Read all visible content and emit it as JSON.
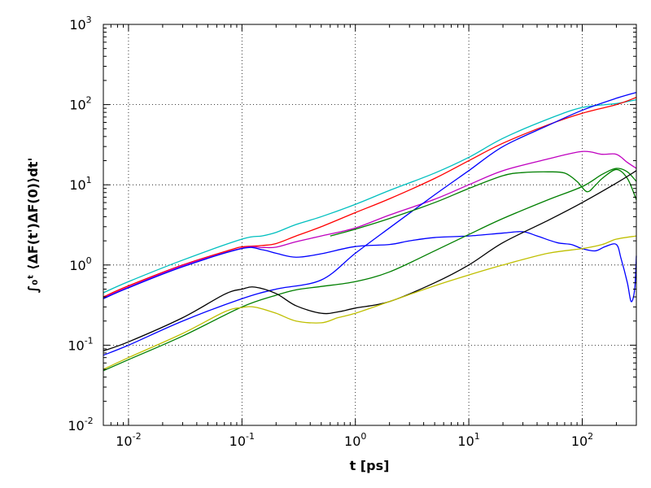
{
  "chart_data": {
    "type": "line",
    "title": "",
    "xlabel": "t [ps]",
    "ylabel": "∫₀ᵗ ⟨ΔF(t')ΔF(0)⟩dt'",
    "xscale": "log",
    "yscale": "log",
    "xlim": [
      0.006,
      300
    ],
    "ylim": [
      0.01,
      1000
    ],
    "grid": true,
    "x_ticks": [
      {
        "base": "10",
        "exp": "-2",
        "value": 0.01
      },
      {
        "base": "10",
        "exp": "-1",
        "value": 0.1
      },
      {
        "base": "10",
        "exp": "0",
        "value": 1
      },
      {
        "base": "10",
        "exp": "1",
        "value": 10
      },
      {
        "base": "10",
        "exp": "2",
        "value": 100
      }
    ],
    "y_ticks": [
      {
        "base": "10",
        "exp": "-2",
        "value": 0.01
      },
      {
        "base": "10",
        "exp": "-1",
        "value": 0.1
      },
      {
        "base": "10",
        "exp": "0",
        "value": 1
      },
      {
        "base": "10",
        "exp": "1",
        "value": 10
      },
      {
        "base": "10",
        "exp": "2",
        "value": 100
      },
      {
        "base": "10",
        "exp": "3",
        "value": 1000
      }
    ],
    "series": [
      {
        "color": "#00bfbf",
        "points": [
          [
            0.006,
            0.45
          ],
          [
            0.01,
            0.62
          ],
          [
            0.03,
            1.15
          ],
          [
            0.1,
            2.1
          ],
          [
            0.15,
            2.3
          ],
          [
            0.2,
            2.55
          ],
          [
            0.3,
            3.2
          ],
          [
            0.5,
            4.0
          ],
          [
            1,
            5.7
          ],
          [
            2,
            8.5
          ],
          [
            5,
            14
          ],
          [
            10,
            22
          ],
          [
            20,
            38
          ],
          [
            50,
            66
          ],
          [
            100,
            92
          ],
          [
            200,
            103
          ],
          [
            300,
            115
          ]
        ]
      },
      {
        "color": "#ff0000",
        "points": [
          [
            0.006,
            0.4
          ],
          [
            0.01,
            0.55
          ],
          [
            0.03,
            1.0
          ],
          [
            0.08,
            1.55
          ],
          [
            0.1,
            1.68
          ],
          [
            0.15,
            1.75
          ],
          [
            0.2,
            1.85
          ],
          [
            0.3,
            2.3
          ],
          [
            0.5,
            3.0
          ],
          [
            1,
            4.5
          ],
          [
            2,
            6.7
          ],
          [
            5,
            12
          ],
          [
            10,
            20
          ],
          [
            20,
            33
          ],
          [
            50,
            56
          ],
          [
            100,
            78
          ],
          [
            200,
            100
          ],
          [
            300,
            123
          ]
        ]
      },
      {
        "color": "#bf00bf",
        "points": [
          [
            0.006,
            0.39
          ],
          [
            0.01,
            0.53
          ],
          [
            0.03,
            0.98
          ],
          [
            0.1,
            1.62
          ],
          [
            0.15,
            1.65
          ],
          [
            0.2,
            1.67
          ],
          [
            0.3,
            1.95
          ],
          [
            0.5,
            2.3
          ],
          [
            1,
            2.9
          ],
          [
            2,
            4.2
          ],
          [
            5,
            6.6
          ],
          [
            10,
            10
          ],
          [
            20,
            15
          ],
          [
            50,
            21
          ],
          [
            100,
            26
          ],
          [
            150,
            24
          ],
          [
            200,
            24
          ],
          [
            250,
            19
          ],
          [
            300,
            16
          ]
        ]
      },
      {
        "color": "#0000ff",
        "points": [
          [
            0.006,
            0.38
          ],
          [
            0.01,
            0.52
          ],
          [
            0.03,
            0.95
          ],
          [
            0.1,
            1.6
          ],
          [
            0.15,
            1.55
          ],
          [
            0.2,
            1.4
          ],
          [
            0.3,
            1.25
          ],
          [
            0.5,
            1.38
          ],
          [
            1,
            1.7
          ],
          [
            2,
            1.8
          ],
          [
            3,
            2.0
          ],
          [
            5,
            2.2
          ],
          [
            10,
            2.3
          ],
          [
            20,
            2.5
          ],
          [
            30,
            2.6
          ],
          [
            40,
            2.3
          ],
          [
            60,
            1.9
          ],
          [
            80,
            1.8
          ],
          [
            100,
            1.6
          ],
          [
            130,
            1.5
          ],
          [
            160,
            1.7
          ],
          [
            200,
            1.8
          ],
          [
            220,
            1.2
          ],
          [
            250,
            0.6
          ],
          [
            270,
            0.35
          ],
          [
            290,
            0.5
          ],
          [
            300,
            1.3
          ]
        ]
      },
      {
        "color": "#0000ff",
        "points": [
          [
            0.006,
            0.075
          ],
          [
            0.01,
            0.1
          ],
          [
            0.03,
            0.2
          ],
          [
            0.1,
            0.38
          ],
          [
            0.2,
            0.5
          ],
          [
            0.5,
            0.65
          ],
          [
            1,
            1.4
          ],
          [
            2,
            2.9
          ],
          [
            5,
            7.5
          ],
          [
            10,
            15
          ],
          [
            20,
            30
          ],
          [
            50,
            55
          ],
          [
            100,
            85
          ],
          [
            200,
            120
          ],
          [
            300,
            142
          ]
        ]
      },
      {
        "color": "#007f00",
        "points": [
          [
            0.006,
            0.048
          ],
          [
            0.01,
            0.066
          ],
          [
            0.03,
            0.13
          ],
          [
            0.1,
            0.3
          ],
          [
            0.2,
            0.42
          ],
          [
            0.3,
            0.49
          ],
          [
            0.5,
            0.54
          ],
          [
            1,
            0.62
          ],
          [
            2,
            0.82
          ],
          [
            5,
            1.5
          ],
          [
            10,
            2.4
          ],
          [
            20,
            3.8
          ],
          [
            50,
            6.5
          ],
          [
            100,
            9.5
          ],
          [
            150,
            13.5
          ],
          [
            200,
            16
          ],
          [
            250,
            14.5
          ],
          [
            300,
            11
          ]
        ]
      },
      {
        "color": "#007f00",
        "points": [
          [
            0.6,
            2.3
          ],
          [
            1,
            2.8
          ],
          [
            2,
            3.8
          ],
          [
            5,
            6.0
          ],
          [
            10,
            9
          ],
          [
            20,
            13
          ],
          [
            30,
            14.2
          ],
          [
            50,
            14.5
          ],
          [
            70,
            14.0
          ],
          [
            90,
            11
          ],
          [
            110,
            8.2
          ],
          [
            130,
            9.8
          ],
          [
            150,
            12
          ],
          [
            200,
            15.5
          ],
          [
            250,
            12
          ],
          [
            300,
            6.5
          ]
        ]
      },
      {
        "color": "#000000",
        "points": [
          [
            0.006,
            0.085
          ],
          [
            0.01,
            0.11
          ],
          [
            0.03,
            0.22
          ],
          [
            0.07,
            0.43
          ],
          [
            0.1,
            0.5
          ],
          [
            0.13,
            0.53
          ],
          [
            0.2,
            0.44
          ],
          [
            0.3,
            0.31
          ],
          [
            0.5,
            0.25
          ],
          [
            0.7,
            0.26
          ],
          [
            1,
            0.29
          ],
          [
            2,
            0.35
          ],
          [
            5,
            0.6
          ],
          [
            10,
            1.0
          ],
          [
            20,
            1.9
          ],
          [
            50,
            3.6
          ],
          [
            100,
            6.0
          ],
          [
            200,
            10.5
          ],
          [
            300,
            15
          ]
        ]
      },
      {
        "color": "#bfbf00",
        "points": [
          [
            0.006,
            0.05
          ],
          [
            0.01,
            0.07
          ],
          [
            0.03,
            0.14
          ],
          [
            0.07,
            0.26
          ],
          [
            0.1,
            0.295
          ],
          [
            0.13,
            0.298
          ],
          [
            0.2,
            0.25
          ],
          [
            0.3,
            0.2
          ],
          [
            0.5,
            0.19
          ],
          [
            0.7,
            0.22
          ],
          [
            1,
            0.25
          ],
          [
            2,
            0.35
          ],
          [
            5,
            0.55
          ],
          [
            10,
            0.75
          ],
          [
            20,
            1.0
          ],
          [
            50,
            1.4
          ],
          [
            100,
            1.6
          ],
          [
            150,
            1.8
          ],
          [
            200,
            2.1
          ],
          [
            300,
            2.3
          ]
        ]
      }
    ]
  }
}
